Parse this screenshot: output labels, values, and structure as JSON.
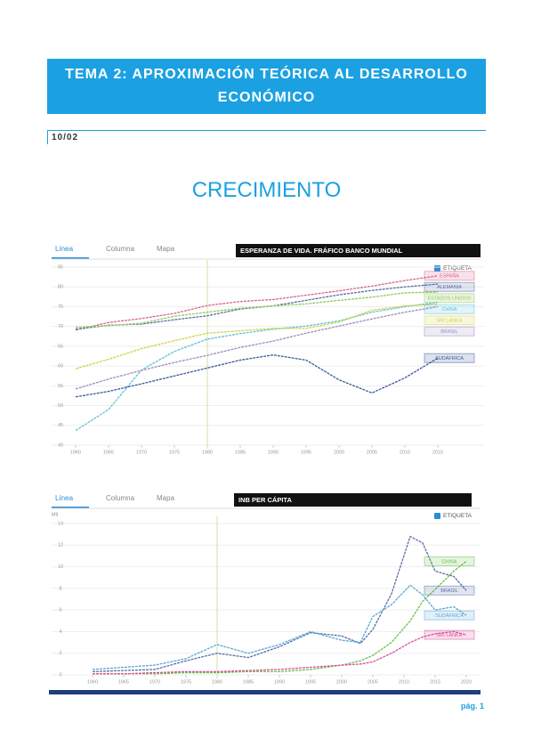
{
  "header": {
    "title": "TEMA 2: APROXIMACIÓN TEÓRICA AL DESARROLLO ECONÓMICO",
    "date": "10/02"
  },
  "heading": "CRECIMIENTO",
  "chart_data": [
    {
      "type": "line",
      "title": "ESPERANZA DE VIDA. FRÁFICO BANCO MUNDIAL",
      "tabs": [
        "Línea",
        "Columna",
        "Mapa"
      ],
      "checkbox": "ETIQUETA",
      "x": [
        1960,
        1965,
        1970,
        1975,
        1980,
        1985,
        1990,
        1995,
        2000,
        2005,
        2010,
        2015
      ],
      "xlim": [
        1960,
        2020
      ],
      "xticks": [
        1960,
        1965,
        1970,
        1975,
        1980,
        1985,
        1990,
        1995,
        2000,
        2005,
        2010,
        2015
      ],
      "ylim": [
        40,
        85
      ],
      "yticks": [
        40,
        45,
        50,
        55,
        60,
        65,
        70,
        75,
        80,
        85
      ],
      "series": [
        {
          "name": "ESPAÑA",
          "color": "#d9668c",
          "values": [
            69.1,
            71,
            72,
            73.3,
            75.3,
            76.3,
            76.8,
            77.9,
            79,
            80.2,
            81.6,
            82.8
          ]
        },
        {
          "name": "ALEMANIA",
          "color": "#5a6fa0",
          "values": [
            69.3,
            70.3,
            70.6,
            71.7,
            72.7,
            74.4,
            75.2,
            76.6,
            78,
            79.1,
            80,
            80.7
          ]
        },
        {
          "name": "ESTADOS UNIDOS",
          "color": "#8fc95e",
          "values": [
            69.8,
            70.2,
            70.8,
            72.6,
            73.6,
            74.6,
            75.2,
            75.7,
            76.6,
            77.4,
            78.5,
            78.7
          ]
        },
        {
          "name": "CHINA",
          "color": "#5ec2d9",
          "values": [
            43.7,
            49,
            59,
            63.7,
            66.8,
            68.2,
            69.3,
            70.1,
            71.4,
            73.6,
            75,
            76.1
          ]
        },
        {
          "name": "BRASIL",
          "color": "#9a8fc0",
          "values": [
            54.2,
            56.7,
            58.9,
            60.9,
            62.7,
            64.7,
            66.3,
            68.3,
            70.1,
            71.9,
            73.6,
            75
          ]
        },
        {
          "name": "SRI LANKA",
          "color": "#d2d24a",
          "values": [
            59.3,
            61.7,
            64.4,
            66.4,
            68.3,
            68.9,
            69.5,
            69.5,
            71.1,
            74.1,
            75.2,
            75.6
          ]
        },
        {
          "name": "SUDÁFRICA",
          "color": "#3c5a9a",
          "values": [
            52.2,
            53.6,
            55.5,
            57.5,
            59.5,
            61.5,
            62.8,
            61.5,
            56.5,
            53.2,
            57,
            62
          ]
        }
      ]
    },
    {
      "type": "line",
      "title": "INB PER CÁPITA",
      "tabs": [
        "Línea",
        "Columna",
        "Mapa"
      ],
      "checkbox": "ETIQUETA",
      "y_unit": "Mil",
      "x": [
        1960,
        1965,
        1970,
        1975,
        1980,
        1985,
        1990,
        1995,
        2000,
        2003,
        2005,
        2008,
        2011,
        2013,
        2015,
        2018,
        2020
      ],
      "xlim": [
        1960,
        2020
      ],
      "xticks": [
        1960,
        1965,
        1970,
        1975,
        1980,
        1985,
        1990,
        1995,
        2000,
        2005,
        2010,
        2015,
        2020
      ],
      "ylim": [
        0,
        14
      ],
      "yticks": [
        0,
        2,
        4,
        6,
        8,
        10,
        12,
        14
      ],
      "series": [
        {
          "name": "CHINA",
          "color": "#6cc24a",
          "values": [
            0.1,
            0.1,
            0.1,
            0.2,
            0.2,
            0.3,
            0.3,
            0.5,
            0.9,
            1.3,
            1.8,
            3,
            5,
            6.8,
            7.9,
            9.6,
            10.5
          ]
        },
        {
          "name": "BRASIL",
          "color": "#5b6fa6",
          "values": [
            0.3,
            0.4,
            0.5,
            1.3,
            2,
            1.6,
            2.6,
            3.9,
            3.6,
            2.9,
            4.2,
            7.5,
            12.8,
            12.2,
            9.6,
            9.1,
            7.8
          ]
        },
        {
          "name": "SUDÁFRICA",
          "color": "#5aa9d6",
          "values": [
            0.5,
            0.7,
            0.9,
            1.5,
            2.8,
            2,
            2.8,
            4,
            3.2,
            3,
            5.4,
            6.5,
            8.3,
            7.4,
            6,
            6.3,
            5.5
          ]
        },
        {
          "name": "SRI LANKA",
          "color": "#d94f9b",
          "values": [
            0.1,
            0.1,
            0.2,
            0.3,
            0.3,
            0.4,
            0.5,
            0.7,
            0.9,
            1,
            1.2,
            2,
            3,
            3.5,
            3.8,
            4,
            3.7
          ]
        }
      ]
    }
  ],
  "footer": {
    "page": "pág. 1"
  }
}
